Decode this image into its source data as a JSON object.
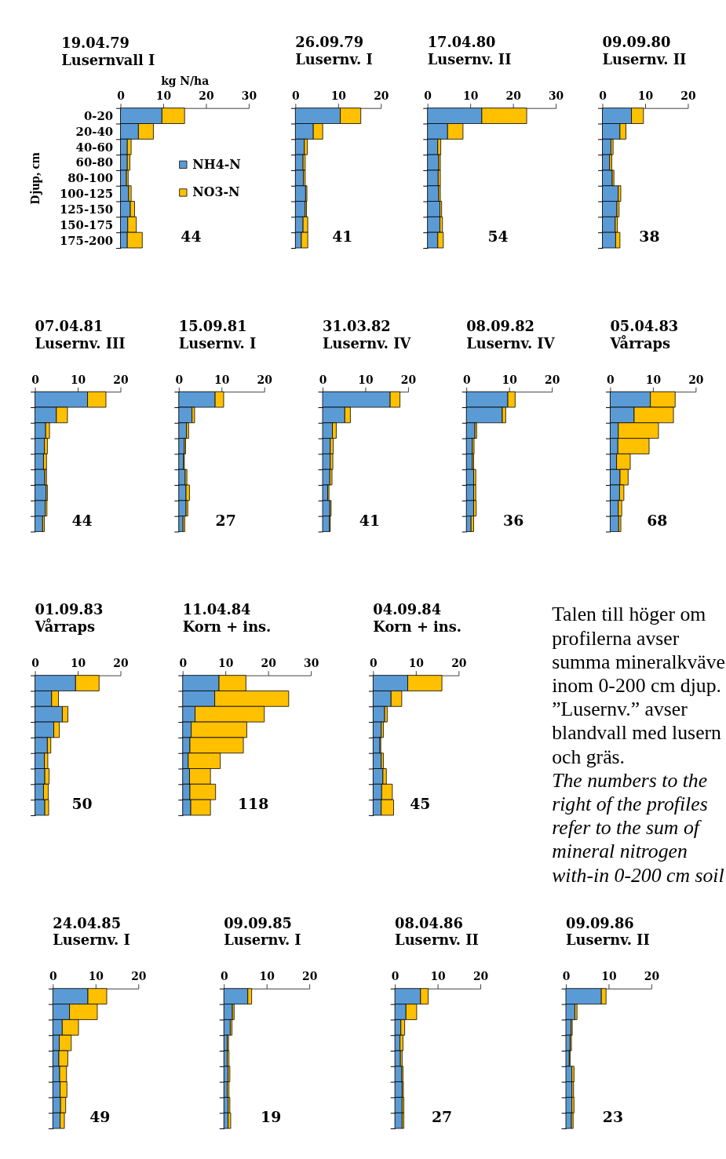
{
  "chart_data": [
    {
      "type": "bar",
      "title": "19.04.79",
      "subtitle": "Lusernvall I",
      "xlabel": "kg N/ha",
      "ylabel": "Djup, cm",
      "orientation": "horizontal",
      "stacked": true,
      "categories": [
        "0-20",
        "20-40",
        "40-60",
        "60-80",
        "80-100",
        "100-125",
        "125-150",
        "150-175",
        "175-200"
      ],
      "xlim": [
        0,
        30
      ],
      "xticks": [
        0,
        10,
        20,
        30
      ],
      "legend": "right",
      "series": [
        {
          "name": "NH4-N",
          "color": "#5b9bd5",
          "values": [
            9.7,
            4.2,
            1.6,
            1.6,
            1.4,
            1.9,
            2.3,
            1.7,
            1.6
          ]
        },
        {
          "name": "NO3-N",
          "color": "#ffc000",
          "values": [
            5.3,
            3.5,
            0.9,
            0.6,
            0.4,
            0.6,
            1.0,
            2.0,
            3.5
          ]
        }
      ],
      "annotations": [
        "44"
      ]
    },
    {
      "type": "bar",
      "title": "26.09.79",
      "subtitle": "Lusernv. I",
      "orientation": "horizontal",
      "stacked": true,
      "categories": [
        null,
        null,
        null,
        null,
        null,
        null,
        null,
        null,
        null
      ],
      "xlim": [
        0,
        20
      ],
      "xticks": [
        0,
        10,
        20
      ],
      "series": [
        {
          "color": "#5b9bd5",
          "values": [
            10.5,
            4.2,
            2.1,
            1.8,
            1.9,
            2.4,
            2.3,
            1.8,
            1.4
          ]
        },
        {
          "color": "#ffc000",
          "values": [
            4.8,
            2.2,
            0.7,
            0.5,
            0.4,
            0.3,
            0.3,
            1.1,
            1.5
          ]
        }
      ],
      "annotations": [
        "41"
      ]
    },
    {
      "type": "bar",
      "title": "17.04.80",
      "subtitle": "Lusernv. II",
      "orientation": "horizontal",
      "stacked": true,
      "categories": [
        null,
        null,
        null,
        null,
        null,
        null,
        null,
        null,
        null
      ],
      "xlim": [
        0,
        30
      ],
      "xticks": [
        0,
        10,
        20,
        30
      ],
      "series": [
        {
          "color": "#5b9bd5",
          "values": [
            12.7,
            4.7,
            2.4,
            2.6,
            2.5,
            2.6,
            2.9,
            2.9,
            2.4
          ]
        },
        {
          "color": "#ffc000",
          "values": [
            10.5,
            3.6,
            0.7,
            0.4,
            0.5,
            0.4,
            0.4,
            0.6,
            1.3
          ]
        }
      ],
      "annotations": [
        "54"
      ]
    },
    {
      "type": "bar",
      "title": "09.09.80",
      "subtitle": "Lusernv. II",
      "orientation": "horizontal",
      "stacked": true,
      "categories": [
        null,
        null,
        null,
        null,
        null,
        null,
        null,
        null,
        null
      ],
      "xlim": [
        0,
        20
      ],
      "xticks": [
        0,
        10,
        20
      ],
      "series": [
        {
          "color": "#5b9bd5",
          "values": [
            6.8,
            4.1,
            2.0,
            1.7,
            2.3,
            3.7,
            3.4,
            3.0,
            3.1
          ]
        },
        {
          "color": "#ffc000",
          "values": [
            2.8,
            1.4,
            0.5,
            0.5,
            0.4,
            0.6,
            0.5,
            0.5,
            1.0
          ]
        }
      ],
      "annotations": [
        "38"
      ]
    },
    {
      "type": "bar",
      "title": "07.04.81",
      "subtitle": "Lusernv. III",
      "orientation": "horizontal",
      "stacked": true,
      "categories": [
        null,
        null,
        null,
        null,
        null,
        null,
        null,
        null,
        null
      ],
      "xlim": [
        0,
        20
      ],
      "xticks": [
        0,
        10,
        20
      ],
      "series": [
        {
          "color": "#5b9bd5",
          "values": [
            12.3,
            5.0,
            2.5,
            2.2,
            2.0,
            2.3,
            2.6,
            2.4,
            1.8
          ]
        },
        {
          "color": "#ffc000",
          "values": [
            4.3,
            2.6,
            0.9,
            0.7,
            0.7,
            0.4,
            0.3,
            0.4,
            0.4
          ]
        }
      ],
      "annotations": [
        "44"
      ]
    },
    {
      "type": "bar",
      "title": "15.09.81",
      "subtitle": "Lusernv. I",
      "orientation": "horizontal",
      "stacked": true,
      "categories": [
        null,
        null,
        null,
        null,
        null,
        null,
        null,
        null,
        null
      ],
      "xlim": [
        0,
        20
      ],
      "xticks": [
        0,
        10,
        20
      ],
      "series": [
        {
          "color": "#5b9bd5",
          "values": [
            8.5,
            3.1,
            1.8,
            1.3,
            1.1,
            1.5,
            1.7,
            1.7,
            1.0
          ]
        },
        {
          "color": "#ffc000",
          "values": [
            2.0,
            0.6,
            0.5,
            0.3,
            0.2,
            0.4,
            0.8,
            0.4,
            0.4
          ]
        }
      ],
      "annotations": [
        "27"
      ]
    },
    {
      "type": "bar",
      "title": "31.03.82",
      "subtitle": "Lusernv. IV",
      "orientation": "horizontal",
      "stacked": true,
      "categories": [
        null,
        null,
        null,
        null,
        null,
        null,
        null,
        null,
        null
      ],
      "xlim": [
        0,
        20
      ],
      "xticks": [
        0,
        10,
        20
      ],
      "series": [
        {
          "color": "#5b9bd5",
          "values": [
            15.8,
            5.2,
            2.3,
            1.8,
            1.8,
            1.7,
            1.2,
            1.7,
            1.6
          ]
        },
        {
          "color": "#ffc000",
          "values": [
            2.3,
            1.3,
            0.9,
            0.7,
            0.6,
            0.5,
            0.3,
            0.3,
            0.2
          ]
        }
      ],
      "annotations": [
        "41"
      ]
    },
    {
      "type": "bar",
      "title": "08.09.82",
      "subtitle": "Lusernv. IV",
      "orientation": "horizontal",
      "stacked": true,
      "categories": [
        null,
        null,
        null,
        null,
        null,
        null,
        null,
        null,
        null
      ],
      "xlim": [
        0,
        20
      ],
      "xticks": [
        0,
        10,
        20
      ],
      "series": [
        {
          "color": "#5b9bd5",
          "values": [
            9.7,
            8.4,
            2.0,
            1.4,
            1.4,
            1.7,
            1.7,
            1.7,
            1.1
          ]
        },
        {
          "color": "#ffc000",
          "values": [
            1.7,
            0.8,
            0.4,
            0.4,
            0.3,
            0.5,
            0.5,
            0.6,
            0.6
          ]
        }
      ],
      "annotations": [
        "36"
      ]
    },
    {
      "type": "bar",
      "title": "05.04.83",
      "subtitle": "Vårraps",
      "orientation": "horizontal",
      "stacked": true,
      "categories": [
        null,
        null,
        null,
        null,
        null,
        null,
        null,
        null,
        null
      ],
      "xlim": [
        0,
        20
      ],
      "xticks": [
        0,
        10,
        20
      ],
      "series": [
        {
          "color": "#5b9bd5",
          "values": [
            9.4,
            5.6,
            1.9,
            1.8,
            1.5,
            2.3,
            2.2,
            1.9,
            2.0
          ]
        },
        {
          "color": "#ffc000",
          "values": [
            5.8,
            9.2,
            9.4,
            7.3,
            3.2,
            1.9,
            1.0,
            0.8,
            0.5
          ]
        }
      ],
      "annotations": [
        "68"
      ]
    },
    {
      "type": "bar",
      "title": "01.09.83",
      "subtitle": "Vårraps",
      "orientation": "horizontal",
      "stacked": true,
      "categories": [
        null,
        null,
        null,
        null,
        null,
        null,
        null,
        null,
        null
      ],
      "xlim": [
        0,
        20
      ],
      "xticks": [
        0,
        10,
        20
      ],
      "series": [
        {
          "color": "#5b9bd5",
          "values": [
            9.5,
            3.9,
            6.4,
            4.4,
            2.9,
            2.2,
            2.3,
            2.0,
            2.3
          ]
        },
        {
          "color": "#ffc000",
          "values": [
            5.5,
            1.6,
            1.3,
            1.3,
            0.8,
            0.8,
            1.0,
            1.1,
            0.9
          ]
        }
      ],
      "annotations": [
        "50"
      ]
    },
    {
      "type": "bar",
      "title": "11.04.84",
      "subtitle": "Korn + ins.",
      "orientation": "horizontal",
      "stacked": true,
      "categories": [
        null,
        null,
        null,
        null,
        null,
        null,
        null,
        null,
        null
      ],
      "xlim": [
        0,
        30
      ],
      "xticks": [
        0,
        10,
        20,
        30
      ],
      "series": [
        {
          "color": "#5b9bd5",
          "values": [
            8.5,
            7.5,
            2.9,
            2.0,
            1.7,
            1.3,
            1.6,
            1.7,
            1.9
          ]
        },
        {
          "color": "#ffc000",
          "values": [
            6.3,
            17.3,
            16.2,
            13.0,
            12.5,
            7.5,
            4.9,
            6.0,
            4.6
          ]
        }
      ],
      "annotations": [
        "118"
      ]
    },
    {
      "type": "bar",
      "title": "04.09.84",
      "subtitle": "Korn + ins.",
      "orientation": "horizontal",
      "stacked": true,
      "categories": [
        null,
        null,
        null,
        null,
        null,
        null,
        null,
        null,
        null
      ],
      "xlim": [
        0,
        20
      ],
      "xticks": [
        0,
        10,
        20
      ],
      "series": [
        {
          "color": "#5b9bd5",
          "values": [
            8.1,
            4.2,
            2.7,
            1.9,
            1.6,
            1.9,
            2.3,
            2.0,
            1.9
          ]
        },
        {
          "color": "#ffc000",
          "values": [
            8.0,
            2.5,
            0.6,
            0.5,
            0.2,
            0.5,
            0.8,
            2.5,
            2.9
          ]
        }
      ],
      "annotations": [
        "45"
      ]
    },
    {
      "type": "other",
      "annotations": [
        "Talen till höger om profilerna avser summa mineralkväve inom 0-200 cm djup. ”Lusernv.” avser blandvall med lusern och gräs.",
        "The numbers to the right of the profiles refer to the sum of mineral nitrogen with-in 0-200 cm soil"
      ]
    },
    {
      "type": "bar",
      "title": "24.04.85",
      "subtitle": "Lusernv. I",
      "orientation": "horizontal",
      "stacked": true,
      "categories": [
        null,
        null,
        null,
        null,
        null,
        null,
        null,
        null,
        null
      ],
      "xlim": [
        0,
        20
      ],
      "xticks": [
        0,
        10,
        20
      ],
      "series": [
        {
          "color": "#5b9bd5",
          "values": [
            8.2,
            3.9,
            2.2,
            1.5,
            1.4,
            1.6,
            1.7,
            1.8,
            1.7
          ]
        },
        {
          "color": "#ffc000",
          "values": [
            4.4,
            6.5,
            3.8,
            2.8,
            2.1,
            1.6,
            1.6,
            1.2,
            1.0
          ]
        }
      ],
      "annotations": [
        "49"
      ]
    },
    {
      "type": "bar",
      "title": "09.09.85",
      "subtitle": "Lusernv. I",
      "orientation": "horizontal",
      "stacked": true,
      "categories": [
        null,
        null,
        null,
        null,
        null,
        null,
        null,
        null,
        null
      ],
      "xlim": [
        0,
        20
      ],
      "xticks": [
        0,
        10,
        20
      ],
      "series": [
        {
          "color": "#5b9bd5",
          "values": [
            5.6,
            2.0,
            1.5,
            0.8,
            0.8,
            1.0,
            0.8,
            1.0,
            1.0
          ]
        },
        {
          "color": "#ffc000",
          "values": [
            0.9,
            0.4,
            0.4,
            0.3,
            0.4,
            0.4,
            0.4,
            0.4,
            0.6
          ]
        }
      ],
      "annotations": [
        "19"
      ]
    },
    {
      "type": "bar",
      "title": "08.04.86",
      "subtitle": "Lusernv. II",
      "orientation": "horizontal",
      "stacked": true,
      "categories": [
        null,
        null,
        null,
        null,
        null,
        null,
        null,
        null,
        null
      ],
      "xlim": [
        0,
        20
      ],
      "xticks": [
        0,
        10,
        20
      ],
      "series": [
        {
          "color": "#5b9bd5",
          "values": [
            6.0,
            2.6,
            1.4,
            1.2,
            1.3,
            1.6,
            1.7,
            1.7,
            1.7
          ]
        },
        {
          "color": "#ffc000",
          "values": [
            1.8,
            2.5,
            0.9,
            0.7,
            0.4,
            0.3,
            0.3,
            0.4,
            0.4
          ]
        }
      ],
      "annotations": [
        "27"
      ]
    },
    {
      "type": "bar",
      "title": "09.09.86",
      "subtitle": "Lusernv. II",
      "orientation": "horizontal",
      "stacked": true,
      "categories": [
        null,
        null,
        null,
        null,
        null,
        null,
        null,
        null,
        null
      ],
      "xlim": [
        0,
        20
      ],
      "xticks": [
        0,
        10,
        20
      ],
      "series": [
        {
          "color": "#5b9bd5",
          "values": [
            8.3,
            2.1,
            1.2,
            1.0,
            0.8,
            1.4,
            1.4,
            1.4,
            1.3
          ]
        },
        {
          "color": "#ffc000",
          "values": [
            1.1,
            0.5,
            0.3,
            0.3,
            0.2,
            0.5,
            0.4,
            0.5,
            0.4
          ]
        }
      ],
      "annotations": [
        "23"
      ]
    }
  ]
}
